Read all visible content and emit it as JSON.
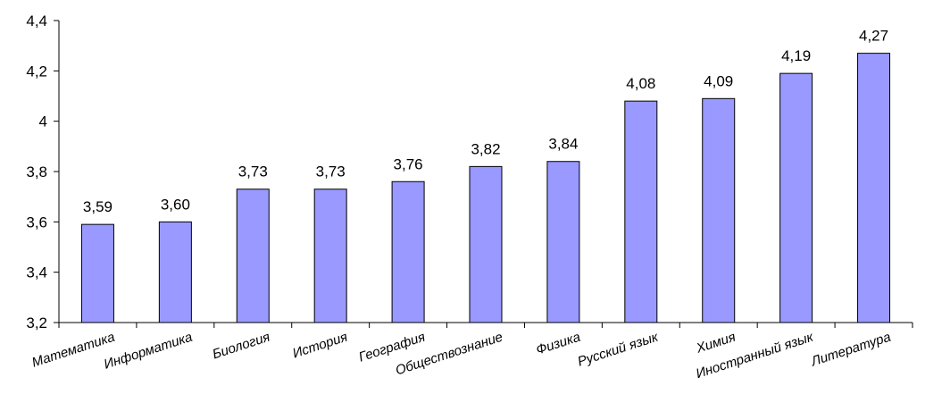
{
  "chart_data": {
    "type": "bar",
    "categories": [
      "Математика",
      "Информатика",
      "Биология",
      "История",
      "География",
      "Обществознание",
      "Физика",
      "Русский язык",
      "Химия",
      "Иностранный язык",
      "Литература"
    ],
    "values": [
      3.59,
      3.6,
      3.73,
      3.73,
      3.76,
      3.82,
      3.84,
      4.08,
      4.09,
      4.19,
      4.27
    ],
    "data_labels": [
      "3,59",
      "3,60",
      "3,73",
      "3,73",
      "3,76",
      "3,82",
      "3,84",
      "4,08",
      "4,09",
      "4,19",
      "4,27"
    ],
    "yticks": [
      3.2,
      3.4,
      3.6,
      3.8,
      4.0,
      4.2,
      4.4
    ],
    "ytick_labels": [
      "3,2",
      "3,4",
      "3,6",
      "3,8",
      "4",
      "4,2",
      "4,4"
    ],
    "ylim": [
      3.2,
      4.4
    ],
    "grid": false,
    "bar_color": "#9999ff",
    "bar_edge_color": "#000000"
  }
}
